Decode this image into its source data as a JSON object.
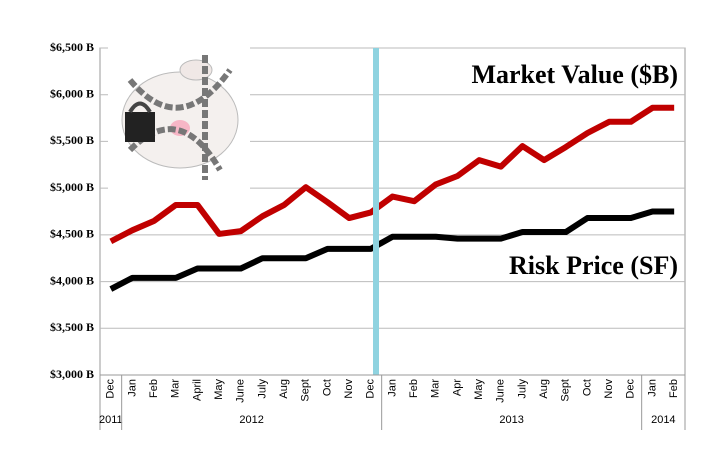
{
  "chart_data": {
    "type": "line",
    "categories": [
      "Dec",
      "Jan",
      "Feb",
      "Mar",
      "April",
      "May",
      "June",
      "July",
      "Aug",
      "Sept",
      "Oct",
      "Nov",
      "Dec",
      "Jan",
      "Feb",
      "Mar",
      "Apr",
      "May",
      "June",
      "July",
      "Aug",
      "Sept",
      "Oct",
      "Nov",
      "Dec",
      "Jan",
      "Feb"
    ],
    "x_groups": [
      {
        "label": "2011",
        "size": 1
      },
      {
        "label": "2012",
        "size": 12
      },
      {
        "label": "2013",
        "size": 12
      },
      {
        "label": "2014",
        "size": 2
      }
    ],
    "series": [
      {
        "name": "Market Value ($B)",
        "color": "#c00000",
        "values": [
          4430,
          4550,
          4650,
          4820,
          4820,
          4510,
          4540,
          4700,
          4820,
          5010,
          4850,
          4680,
          4740,
          4910,
          4860,
          5040,
          5130,
          5300,
          5230,
          5450,
          5300,
          5440,
          5590,
          5710,
          5710,
          5860,
          5860
        ]
      },
      {
        "name": "Risk Price (SF)",
        "color": "#000000",
        "values": [
          3920,
          4040,
          4040,
          4040,
          4140,
          4140,
          4140,
          4250,
          4250,
          4250,
          4350,
          4350,
          4350,
          4480,
          4480,
          4480,
          4460,
          4460,
          4460,
          4530,
          4530,
          4530,
          4680,
          4680,
          4680,
          4750,
          4750
        ]
      }
    ],
    "ylim": [
      3000,
      6500
    ],
    "yticks": [
      {
        "value": 3000,
        "label": "$3,000 B"
      },
      {
        "value": 3500,
        "label": "$3,500 B"
      },
      {
        "value": 4000,
        "label": "$4,000 B"
      },
      {
        "value": 4500,
        "label": "$4,500 B"
      },
      {
        "value": 5000,
        "label": "$5,000 B"
      },
      {
        "value": 5500,
        "label": "$5,500 B"
      },
      {
        "value": 6000,
        "label": "$6,000 B"
      },
      {
        "value": 6500,
        "label": "$6,500 B"
      }
    ],
    "grid": true
  }
}
